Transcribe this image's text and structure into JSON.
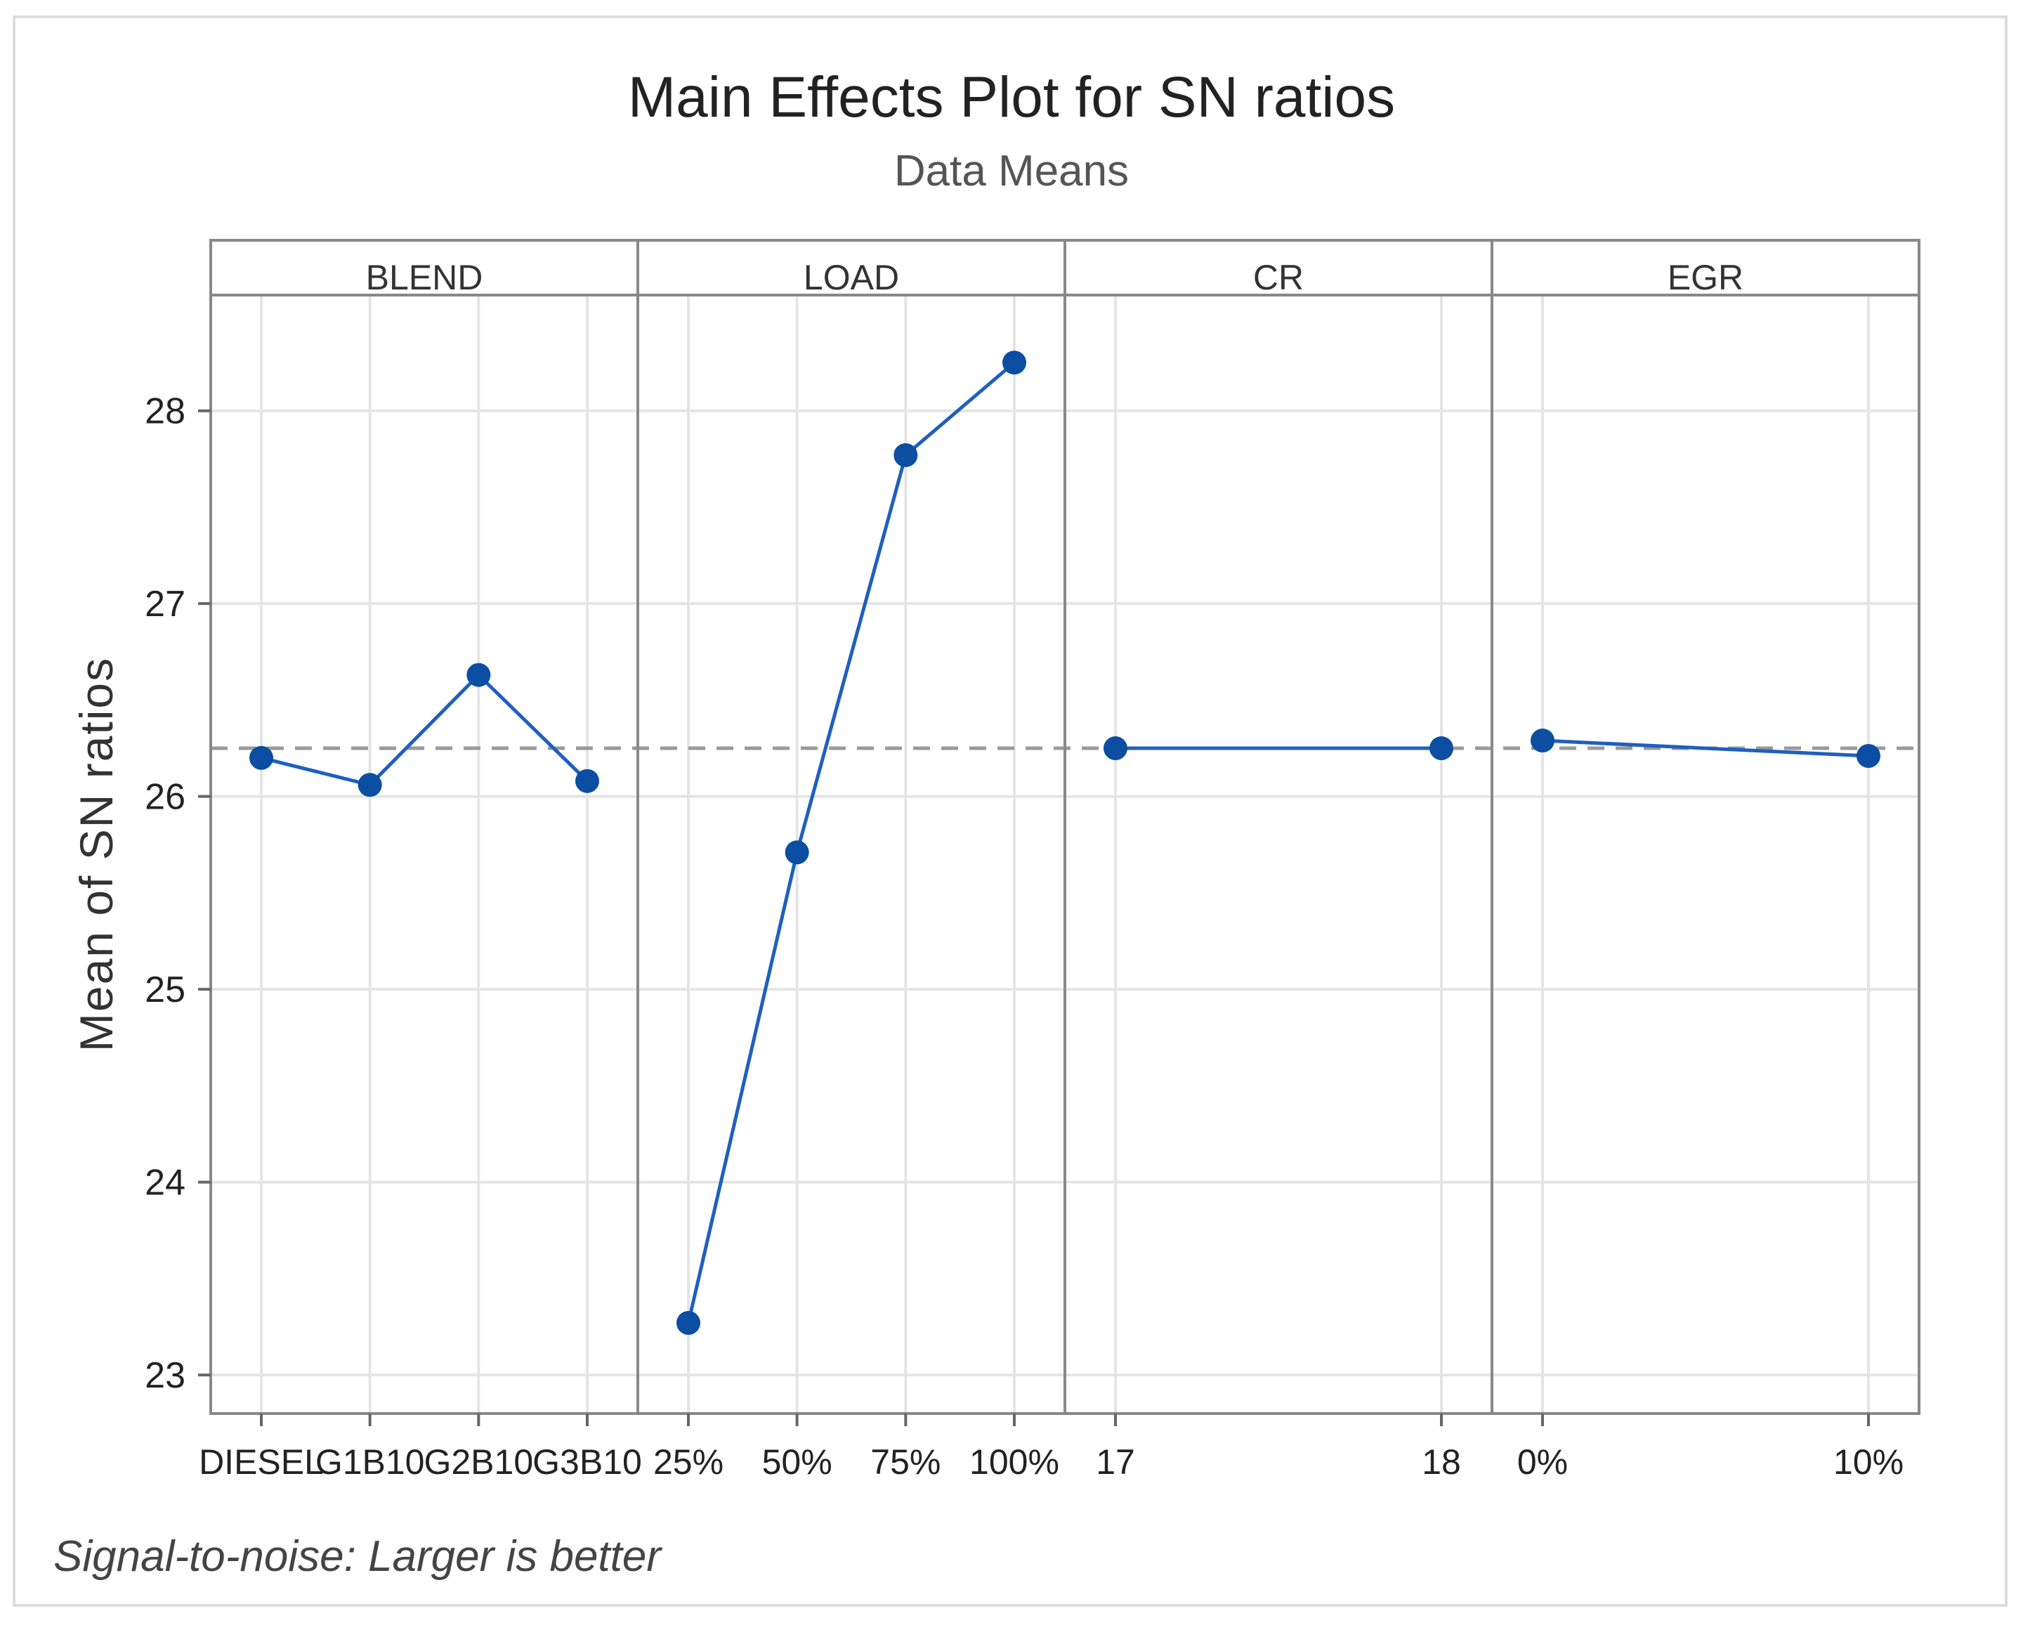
{
  "chart_data": {
    "type": "line",
    "title": "Main Effects Plot for SN ratios",
    "subtitle": "Data Means",
    "ylabel": "Mean of SN ratios",
    "footnote": "Signal-to-noise: Larger is better",
    "ylim": [
      22.8,
      28.6
    ],
    "yticks": [
      23,
      24,
      25,
      26,
      27,
      28
    ],
    "reference_line": 26.25,
    "panels": [
      {
        "factor": "BLEND",
        "levels": [
          "DIESEL",
          "G1B10",
          "G2B10",
          "G3B10"
        ],
        "values": [
          26.2,
          26.06,
          26.63,
          26.08
        ]
      },
      {
        "factor": "LOAD",
        "levels": [
          "25%",
          "50%",
          "75%",
          "100%"
        ],
        "values": [
          23.27,
          25.71,
          27.77,
          28.25
        ]
      },
      {
        "factor": "CR",
        "levels": [
          "17",
          "18"
        ],
        "values": [
          26.25,
          26.25
        ]
      },
      {
        "factor": "EGR",
        "levels": [
          "0%",
          "10%"
        ],
        "values": [
          26.29,
          26.21
        ]
      }
    ],
    "colors": {
      "series": "#1f5fbf",
      "marker": "#0b4ea2",
      "reference": "#999999",
      "grid": "#e4e4e4"
    }
  }
}
